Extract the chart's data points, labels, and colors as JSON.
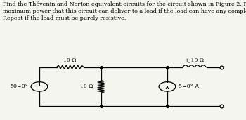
{
  "title_text": "Find the Thévenin and Norton equivalent circuits for the circuit shown in Figure 2. Find the\nmaximum power that this circuit can deliver to a load if the load can have any complex impedance.\nRepeat if the load must be purely resistive.",
  "title_fontsize": 5.8,
  "bg_color": "#f5f5f0",
  "circuit": {
    "voltage_source_label": "50∟0°",
    "res1_label": "10 Ω",
    "res2_label": "10 Ω",
    "inductor_label": "+j10 Ω",
    "current_source_label": "5∟0° A"
  },
  "lw": 0.9
}
